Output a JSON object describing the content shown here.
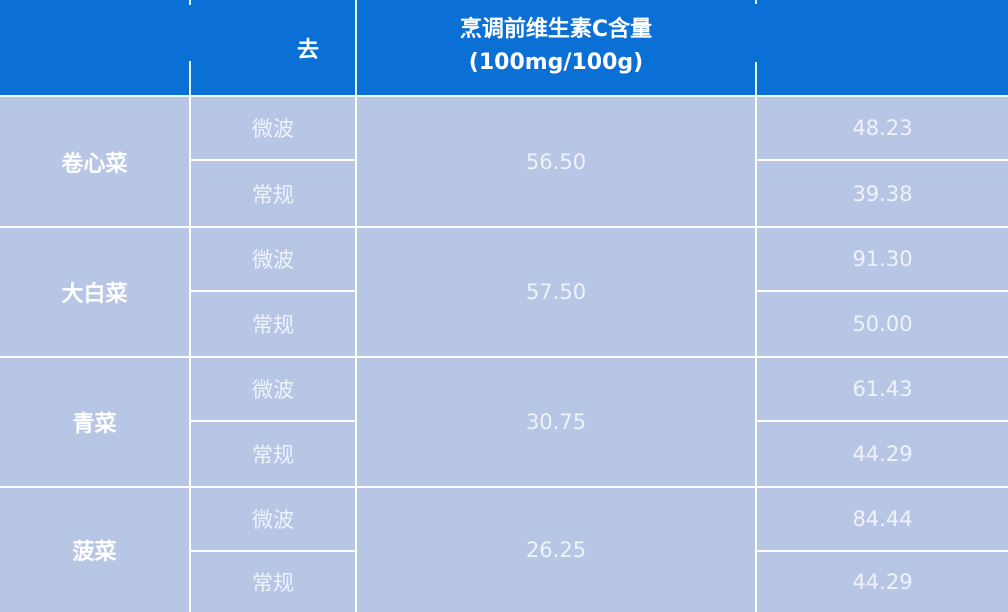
{
  "header": {
    "col2_label": "去",
    "title_line1": "烹调前维生素C含量",
    "title_line2": "(100mg/100g)"
  },
  "methods": {
    "microwave": "微波",
    "conventional": "常规"
  },
  "rows": [
    {
      "vegetable": "卷心菜",
      "before": "56.50",
      "microwave_value": "48.23",
      "conventional_value": "39.38"
    },
    {
      "vegetable": "大白菜",
      "before": "57.50",
      "microwave_value": "91.30",
      "conventional_value": "50.00"
    },
    {
      "vegetable": "青菜",
      "before": "30.75",
      "microwave_value": "61.43",
      "conventional_value": "44.29"
    },
    {
      "vegetable": "菠菜",
      "before": "26.25",
      "microwave_value": "84.44",
      "conventional_value": "44.29"
    }
  ],
  "colors": {
    "header_bg": "#0b70d6",
    "body_bg": "#b8c6e6",
    "grid_line": "#ffffff",
    "header_divider": "#d9f3f8",
    "text": "#ffffff"
  },
  "chart_data": {
    "type": "table",
    "title": "烹调前维生素C含量 (100mg/100g)",
    "columns": [
      "",
      "去",
      "烹调前维生素C含量 (100mg/100g)",
      ""
    ],
    "rows": [
      [
        "卷心菜",
        "微波",
        "56.50",
        "48.23"
      ],
      [
        "卷心菜",
        "常规",
        "56.50",
        "39.38"
      ],
      [
        "大白菜",
        "微波",
        "57.50",
        "91.30"
      ],
      [
        "大白菜",
        "常规",
        "57.50",
        "50.00"
      ],
      [
        "青菜",
        "微波",
        "30.75",
        "61.43"
      ],
      [
        "青菜",
        "常规",
        "30.75",
        "44.29"
      ],
      [
        "菠菜",
        "微波",
        "26.25",
        "84.44"
      ],
      [
        "菠菜",
        "常规",
        "26.25",
        "44.29"
      ]
    ],
    "layout_hints": "vegetable name and before-cooking value are merged cells spanning the 微波/常规 sub-rows; right column header cropped out of view"
  }
}
